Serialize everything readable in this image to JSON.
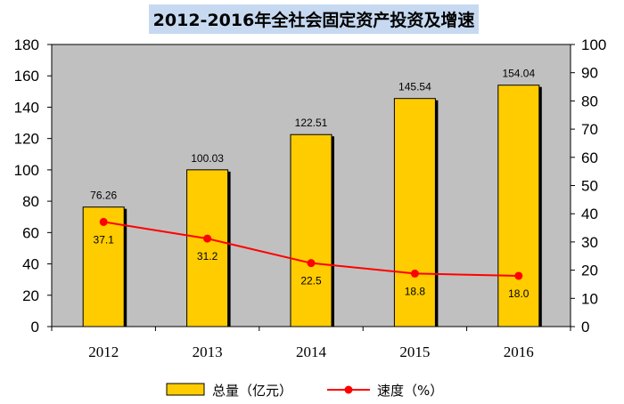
{
  "chart_data": {
    "type": "bar",
    "title": "2012-2016年全社会固定资产投资及增速",
    "categories": [
      "2012",
      "2013",
      "2014",
      "2015",
      "2016"
    ],
    "series": [
      {
        "name": "总量（亿元）",
        "type": "bar",
        "axis": "left",
        "values": [
          76.26,
          100.03,
          122.51,
          145.54,
          154.04
        ],
        "color": "#ffcc00"
      },
      {
        "name": "速度（%）",
        "type": "line",
        "axis": "right",
        "values": [
          37.1,
          31.2,
          22.5,
          18.8,
          18.0
        ],
        "color": "#ff0000"
      }
    ],
    "bar_labels": [
      "76.26",
      "100.03",
      "122.51",
      "145.54",
      "154.04"
    ],
    "point_labels": [
      "37.1",
      "31.2",
      "22.5",
      "18.8",
      "18.0"
    ],
    "ylim_left": [
      0,
      180
    ],
    "ylim_right": [
      0,
      100
    ],
    "yticks_left": [
      "0",
      "20",
      "40",
      "60",
      "80",
      "100",
      "120",
      "140",
      "160",
      "180"
    ],
    "yticks_right": [
      "0",
      "10",
      "20",
      "30",
      "40",
      "50",
      "60",
      "70",
      "80",
      "90",
      "100"
    ],
    "plot_background": "#c0c0c0",
    "grid": false,
    "legend_position": "bottom"
  }
}
